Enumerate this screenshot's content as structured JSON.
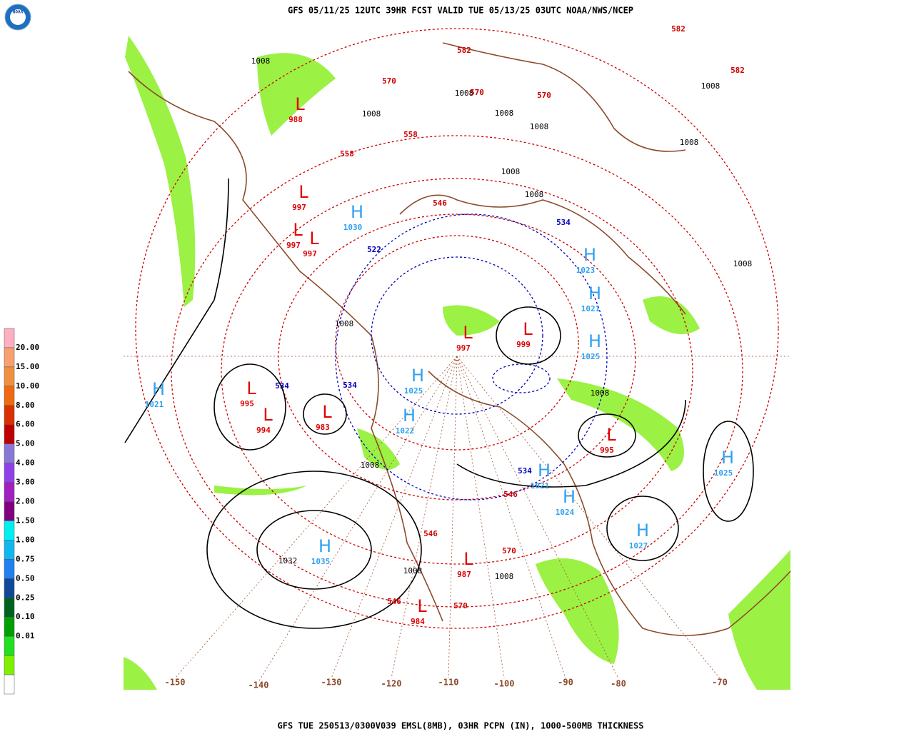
{
  "header": {
    "title": "GFS 05/11/25 12UTC 39HR FCST VALID TUE 05/13/25 03UTC NOAA/NWS/NCEP",
    "logo": "NOAA"
  },
  "footer": {
    "caption": "GFS TUE 250513/0300V039 EMSL(8MB), 03HR PCPN (IN), 1000-500MB THICKNESS"
  },
  "legend": {
    "labels": [
      "20.00",
      "15.00",
      "10.00",
      "8.00",
      "6.00",
      "5.00",
      "4.00",
      "3.00",
      "2.00",
      "1.50",
      "1.00",
      "0.75",
      "0.50",
      "0.25",
      "0.10",
      "0.01"
    ],
    "colors": [
      "#ffb0c0",
      "#f8a070",
      "#f09040",
      "#f06a10",
      "#d83000",
      "#c00000",
      "#8878d8",
      "#9040e8",
      "#a020c0",
      "#800080",
      "#00f0f0",
      "#10b8f0",
      "#2080f0",
      "#104898",
      "#006020",
      "#00a000",
      "#20e020",
      "#80f000",
      "#ffffff"
    ]
  },
  "map": {
    "longitudes": [
      "-150",
      "-140",
      "-130",
      "-120",
      "-110",
      "-100",
      "-90",
      "-80",
      "-70"
    ],
    "centers": [
      {
        "symbol": "H",
        "value": "1021"
      },
      {
        "symbol": "H",
        "value": "1035"
      },
      {
        "symbol": "H",
        "value": "1027"
      },
      {
        "symbol": "H",
        "value": "1025"
      },
      {
        "symbol": "H",
        "value": "1024"
      },
      {
        "symbol": "H",
        "value": "1021"
      },
      {
        "symbol": "H",
        "value": "1025"
      },
      {
        "symbol": "H",
        "value": "1022"
      },
      {
        "symbol": "H",
        "value": "1030"
      },
      {
        "symbol": "H",
        "value": "1025"
      },
      {
        "symbol": "H",
        "value": "1021"
      },
      {
        "symbol": "H",
        "value": "1023"
      },
      {
        "symbol": "L",
        "value": "995"
      },
      {
        "symbol": "L",
        "value": "994"
      },
      {
        "symbol": "L",
        "value": "983"
      },
      {
        "symbol": "L",
        "value": "997"
      },
      {
        "symbol": "L",
        "value": "997"
      },
      {
        "symbol": "L",
        "value": "997"
      },
      {
        "symbol": "L",
        "value": "987"
      },
      {
        "symbol": "L",
        "value": "984"
      },
      {
        "symbol": "L",
        "value": "999"
      },
      {
        "symbol": "L",
        "value": "997"
      },
      {
        "symbol": "L",
        "value": "995"
      },
      {
        "symbol": "L",
        "value": "988"
      }
    ],
    "isobar_labels": [
      "1008",
      "1008",
      "1008",
      "1008",
      "1008",
      "1008",
      "1008",
      "1008",
      "1008",
      "1008",
      "1008",
      "1032",
      "1008",
      "1008",
      "1008",
      "1008"
    ],
    "thickness_labels": [
      "582",
      "582",
      "582",
      "570",
      "570",
      "570",
      "558",
      "558",
      "546",
      "546",
      "534",
      "534",
      "534",
      "522",
      "570",
      "546",
      "570",
      "546",
      "534"
    ]
  }
}
